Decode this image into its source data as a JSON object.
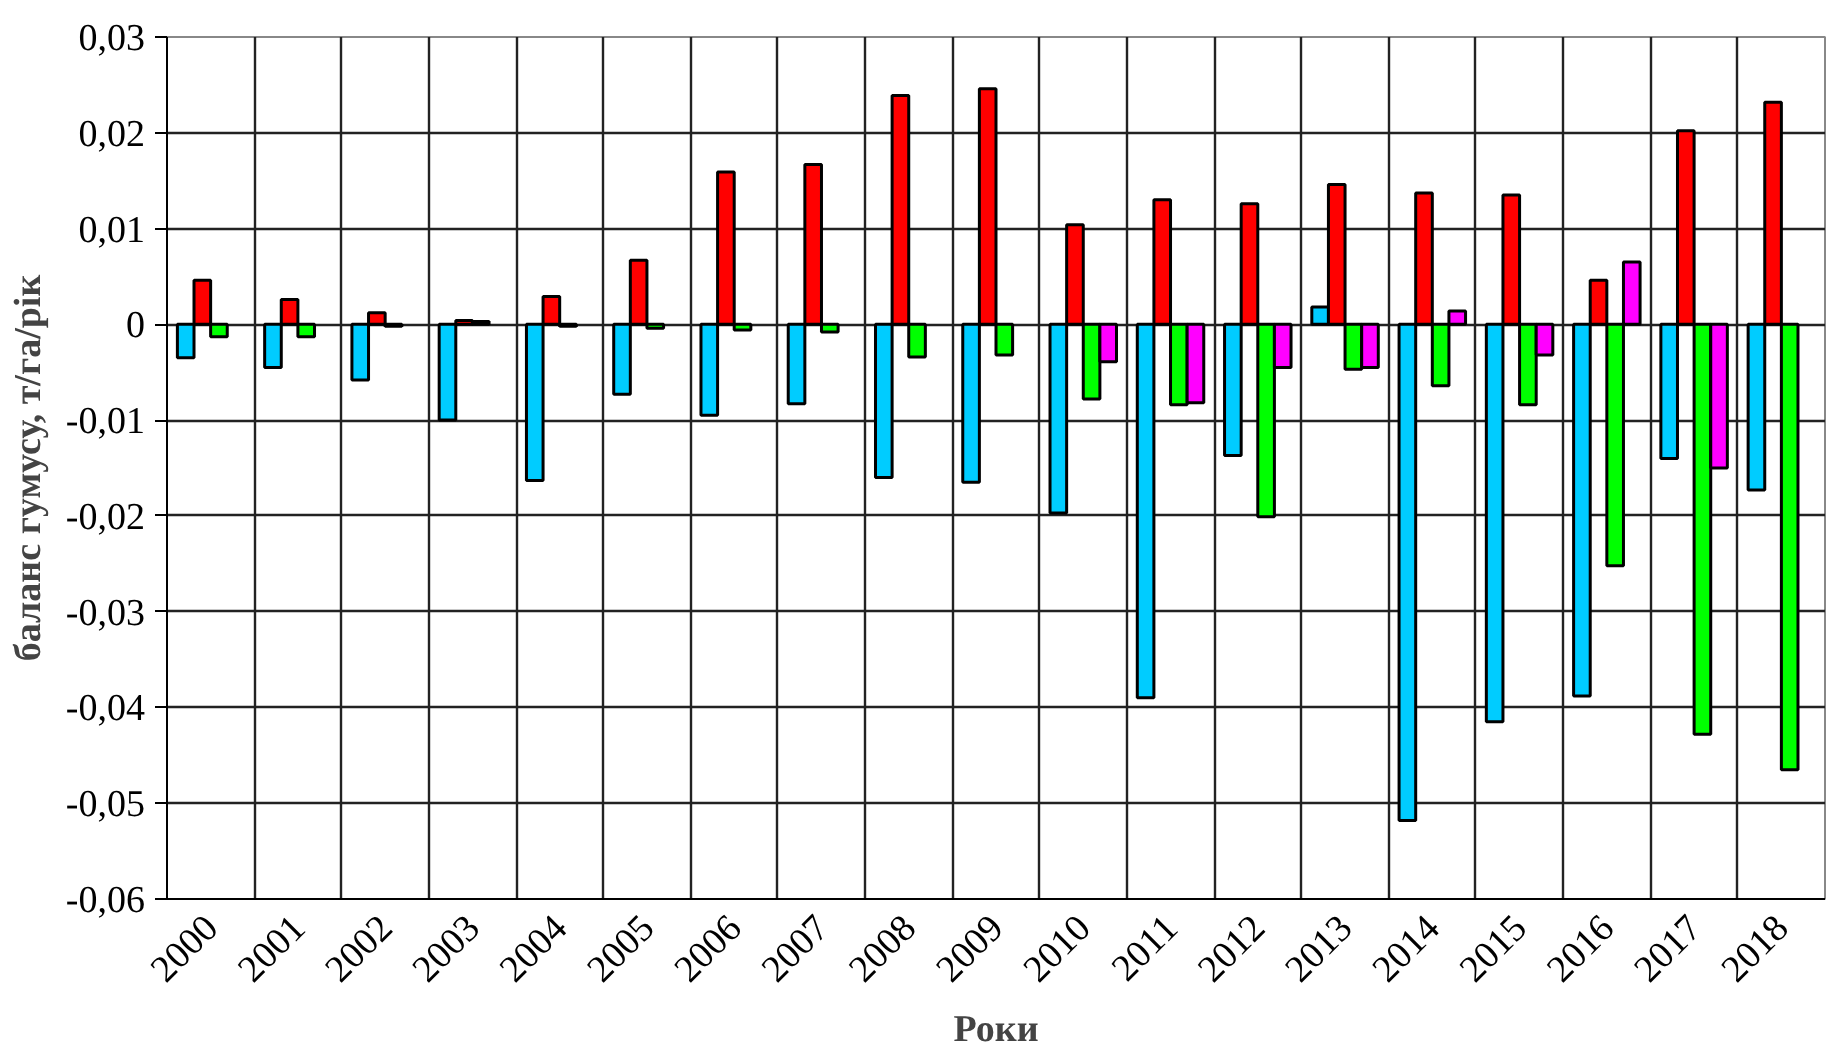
{
  "chart_data": {
    "type": "bar",
    "xlabel": "Роки",
    "ylabel": "баланс гумусу, т/га/рік",
    "categories": [
      "2000",
      "2001",
      "2002",
      "2003",
      "2004",
      "2005",
      "2006",
      "2007",
      "2008",
      "2009",
      "2010",
      "2011",
      "2012",
      "2013",
      "2014",
      "2015",
      "2016",
      "2017",
      "2018"
    ],
    "series": [
      {
        "color": "#00ccff",
        "values": [
          -0.0035,
          -0.0045,
          -0.0058,
          -0.01,
          -0.0163,
          -0.0073,
          -0.0095,
          -0.0083,
          -0.016,
          -0.0165,
          -0.0197,
          -0.039,
          -0.0137,
          0.0018,
          -0.0518,
          -0.0415,
          -0.0388,
          -0.014,
          -0.0173
        ]
      },
      {
        "color": "#ff0000",
        "values": [
          0.0046,
          0.0026,
          0.0012,
          0.0004,
          0.0029,
          0.0067,
          0.0159,
          0.0167,
          0.0239,
          0.0246,
          0.0104,
          0.013,
          0.0126,
          0.0146,
          0.0137,
          0.0135,
          0.0046,
          0.0202,
          0.0232
        ]
      },
      {
        "color": "#00ff00",
        "values": [
          -0.0013,
          -0.0013,
          -0.0002,
          0.0003,
          -0.0002,
          -0.0004,
          -0.0006,
          -0.0008,
          -0.0034,
          -0.0032,
          -0.0078,
          -0.0084,
          -0.0201,
          -0.0047,
          -0.0064,
          -0.0084,
          -0.0252,
          -0.0428,
          -0.0465
        ]
      },
      {
        "color": "#ff00ff",
        "values": [
          null,
          null,
          null,
          null,
          null,
          null,
          null,
          null,
          null,
          null,
          -0.0039,
          -0.0082,
          -0.0045,
          -0.0045,
          0.0014,
          -0.0032,
          0.0065,
          -0.015,
          null
        ]
      }
    ],
    "ylim": [
      -0.06,
      0.03
    ],
    "yticks": [
      {
        "value": -0.06,
        "label": "-0,06"
      },
      {
        "value": -0.05,
        "label": "-0,05"
      },
      {
        "value": -0.04,
        "label": "-0,04"
      },
      {
        "value": -0.03,
        "label": "-0,03"
      },
      {
        "value": -0.02,
        "label": "-0,02"
      },
      {
        "value": -0.01,
        "label": "-0,01"
      },
      0,
      {
        "value": 0.01,
        "label": "0,01"
      },
      {
        "value": 0.02,
        "label": "0,02"
      },
      {
        "value": 0.03,
        "label": "0,03"
      }
    ],
    "grid": true
  }
}
